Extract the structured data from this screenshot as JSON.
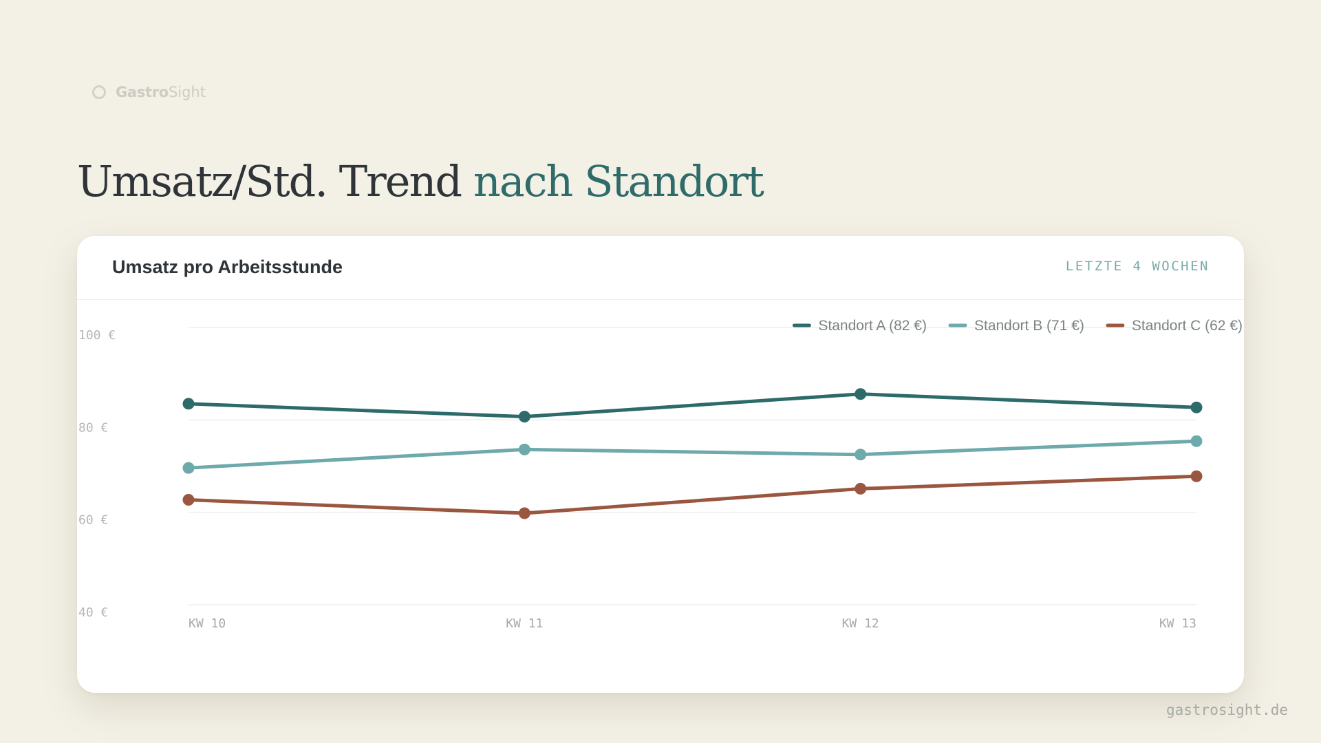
{
  "brand": {
    "name_strong": "Gastro",
    "name_light": "Sight"
  },
  "headline": {
    "main": "Umsatz/Std. Trend",
    "accent": "nach Standort"
  },
  "card": {
    "title": "Umsatz pro Arbeitsstunde",
    "range_label": "LETZTE 4 WOCHEN"
  },
  "footer": {
    "url": "gastrosight.de"
  },
  "colors": {
    "background": "#f3f0e6",
    "accent": "#2f6b69",
    "series_a": "#2d6a6a",
    "series_b": "#6ea9ab",
    "series_c": "#9b5640"
  },
  "icons": {
    "logo": "ring-icon"
  },
  "chart_data": {
    "type": "line",
    "title": "Umsatz pro Arbeitsstunde",
    "xlabel": "",
    "ylabel": "",
    "categories": [
      "KW 10",
      "KW 11",
      "KW 12",
      "KW 13"
    ],
    "ylim": [
      40,
      100
    ],
    "yticks": [
      100,
      80,
      60,
      40
    ],
    "ytick_labels": [
      "100 €",
      "80 €",
      "60 €",
      "40 €"
    ],
    "grid": true,
    "legend_position": "top-right",
    "series": [
      {
        "name": "Standort A (82 €)",
        "color": "#2d6a6a",
        "values": [
          83.5,
          80.7,
          85.6,
          82.7
        ]
      },
      {
        "name": "Standort B (71 €)",
        "color": "#6ea9ab",
        "values": [
          69.6,
          73.6,
          72.5,
          75.4
        ]
      },
      {
        "name": "Standort C (62 €)",
        "color": "#9b5640",
        "values": [
          62.7,
          59.8,
          65.1,
          67.8
        ]
      }
    ]
  }
}
